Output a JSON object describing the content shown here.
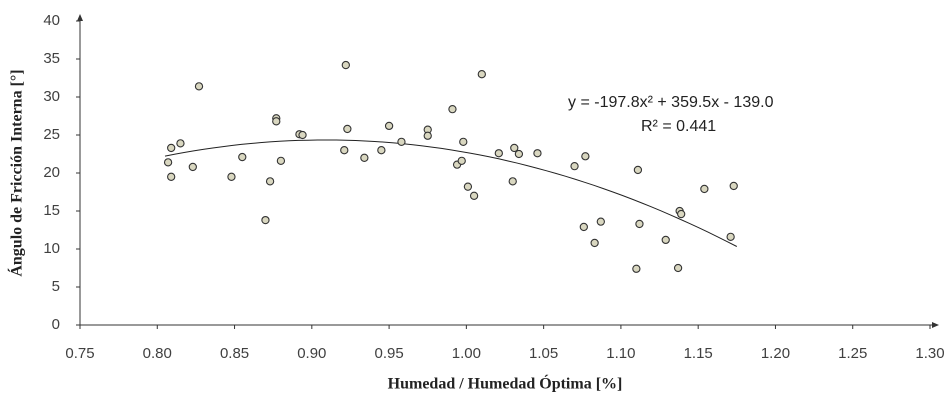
{
  "chart_data": {
    "type": "scatter",
    "x_label": "Humedad / Humedad Óptima [%]",
    "y_label": "Ángulo de Fricción Interna [°]",
    "xlim": [
      0.75,
      1.3
    ],
    "xticks": [
      {
        "value": 0.75,
        "label": "0.75"
      },
      {
        "value": 0.8,
        "label": "0.80"
      },
      {
        "value": 0.85,
        "label": "0.85"
      },
      {
        "value": 0.9,
        "label": "0.90"
      },
      {
        "value": 0.95,
        "label": "0.95"
      },
      {
        "value": 1.0,
        "label": "1.00"
      },
      {
        "value": 1.05,
        "label": "1.05"
      },
      {
        "value": 1.1,
        "label": "1.10"
      },
      {
        "value": 1.15,
        "label": "1.15"
      },
      {
        "value": 1.2,
        "label": "1.20"
      },
      {
        "value": 1.25,
        "label": "1.25"
      },
      {
        "value": 1.3,
        "label": "1.30"
      }
    ],
    "ylim": [
      0,
      40
    ],
    "yticks": [
      0,
      5,
      10,
      15,
      20,
      25,
      30,
      35,
      40
    ],
    "grid": false,
    "color": "#d9d7c0",
    "x": [
      0.807,
      0.809,
      0.809,
      0.815,
      0.827,
      0.823,
      0.848,
      0.855,
      0.87,
      0.873,
      0.877,
      0.877,
      0.88,
      0.892,
      0.894,
      0.922,
      0.923,
      0.921,
      0.934,
      0.945,
      0.95,
      0.958,
      0.975,
      0.975,
      0.991,
      0.994,
      0.997,
      0.998,
      1.001,
      1.005,
      1.01,
      1.021,
      1.031,
      1.034,
      1.03,
      1.046,
      1.07,
      1.077,
      1.076,
      1.083,
      1.087,
      1.111,
      1.112,
      1.11,
      1.129,
      1.138,
      1.139,
      1.137,
      1.154,
      1.173,
      1.171
    ],
    "values": [
      21.4,
      23.3,
      19.5,
      23.9,
      31.4,
      20.8,
      19.5,
      22.1,
      13.8,
      18.9,
      27.2,
      26.8,
      21.6,
      25.1,
      25.0,
      34.2,
      25.8,
      23.0,
      22.0,
      23.0,
      26.2,
      24.1,
      25.7,
      24.9,
      28.4,
      21.1,
      21.6,
      24.1,
      18.2,
      17.0,
      33.0,
      22.6,
      23.3,
      22.5,
      18.9,
      22.6,
      20.9,
      22.2,
      12.9,
      10.8,
      13.6,
      20.4,
      13.3,
      7.4,
      11.2,
      15.0,
      14.6,
      7.5,
      17.9,
      18.3,
      11.6
    ],
    "trendline": {
      "equation": "y = -197.8x² + 359.5x - 139.0",
      "r2": "R² = 0.441",
      "coefficients": [
        -197.8,
        359.5,
        -139.0
      ],
      "xlim": [
        0.805,
        1.175
      ]
    }
  }
}
